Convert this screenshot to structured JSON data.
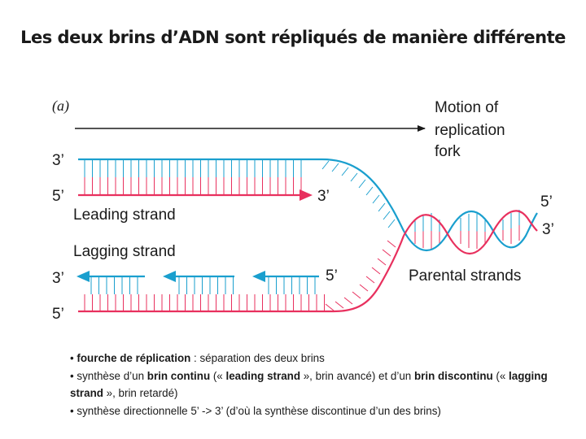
{
  "title": "Les deux brins d’ADN sont répliqués de manière différente",
  "colors": {
    "blue": "#1a9fce",
    "pink": "#e8305e",
    "rung_blue": "#1a9fce",
    "rung_pink": "#e8305e"
  },
  "diagram": {
    "panel_label": "(a)",
    "motion_label": [
      "Motion of",
      "replication",
      "fork"
    ],
    "top_strand": {
      "end_3": "3’",
      "end_5": "5’",
      "leading_end": "3’",
      "label": "Leading strand"
    },
    "bottom_strand": {
      "label": "Lagging strand",
      "end_3": "3’",
      "end_5": "5’",
      "fragment_end": "5’"
    },
    "parental": {
      "end_5": "5’",
      "end_3": "3’",
      "label": "Parental strands"
    }
  },
  "notes": [
    {
      "parts": [
        {
          "text": "• ",
          "bold": false
        },
        {
          "text": "fourche de réplication",
          "bold": true
        },
        {
          "text": " : séparation des deux brins",
          "bold": false
        }
      ]
    },
    {
      "parts": [
        {
          "text": "• synthèse d’un ",
          "bold": false
        },
        {
          "text": "brin continu",
          "bold": true
        },
        {
          "text": " (« ",
          "bold": false
        },
        {
          "text": "leading strand",
          "bold": true
        },
        {
          "text": " », brin avancé) et d’un ",
          "bold": false
        },
        {
          "text": "brin discontinu",
          "bold": true
        },
        {
          "text": " (« ",
          "bold": false
        },
        {
          "text": "lagging strand",
          "bold": true
        },
        {
          "text": " », brin retardé)",
          "bold": false
        }
      ]
    },
    {
      "parts": [
        {
          "text": "• synthèse directionnelle 5’ -> 3’ (d’où la synthèse discontinue d’un des brins)",
          "bold": false
        }
      ]
    }
  ]
}
